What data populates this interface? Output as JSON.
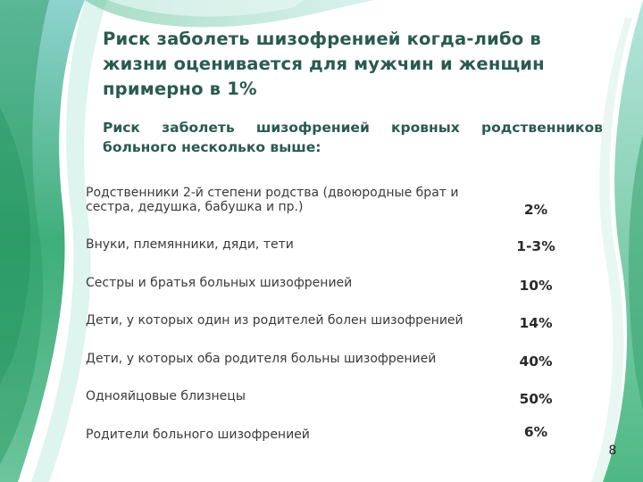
{
  "slide": {
    "title": "Риск заболеть шизофренией когда-либо в жизни оценивается для мужчин и женщин примерно в 1%",
    "subtitle": "Риск заболеть шизофренией кровных родственников больного несколько выше:",
    "page_number": "8"
  },
  "risk_table": {
    "rows": [
      {
        "label": "Родственники 2-й степени родства (двоюродные брат и сестра, дедушка, бабушка и пр.)",
        "value": "2%"
      },
      {
        "label": "Внуки, племянники, дяди, тети",
        "value": "1-3%"
      },
      {
        "label": "Сестры и братья больных шизофренией",
        "value": "10%"
      },
      {
        "label": "Дети, у которых один из родителей болен шизофренией",
        "value": "14%"
      },
      {
        "label": "Дети, у которых оба родителя больны шизофренией",
        "value": "40%"
      },
      {
        "label": "Однояйцовые близнецы",
        "value": "50%"
      },
      {
        "label": "Родители больного шизофренией",
        "value": "6%"
      }
    ]
  },
  "colors": {
    "title": "#2a5a4e",
    "accent_green": "#3aa86a",
    "accent_teal": "#6fc4c0"
  }
}
